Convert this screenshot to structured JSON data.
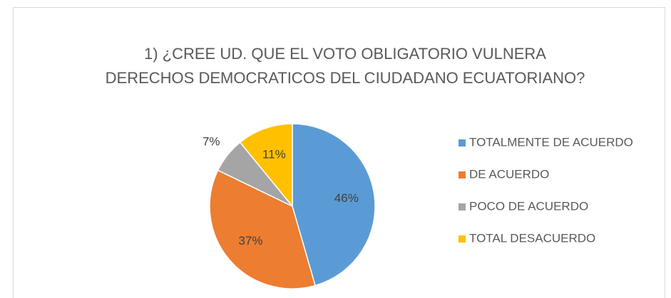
{
  "chart_data": {
    "type": "pie",
    "title": [
      "1) ¿CREE UD. QUE EL VOTO OBLIGATORIO VULNERA",
      "DERECHOS DEMOCRATICOS DEL CIUDADANO ECUATORIANO?"
    ],
    "categories": [
      "TOTALMENTE DE ACUERDO",
      "DE ACUERDO",
      "POCO DE ACUERDO",
      "TOTAL DESACUERDO"
    ],
    "values": [
      46,
      37,
      7,
      11
    ],
    "value_labels": [
      "46%",
      "37%",
      "7%",
      "11%"
    ],
    "colors": [
      "#5b9bd5",
      "#ed7d31",
      "#a5a5a5",
      "#ffc000"
    ],
    "legend": "right"
  }
}
